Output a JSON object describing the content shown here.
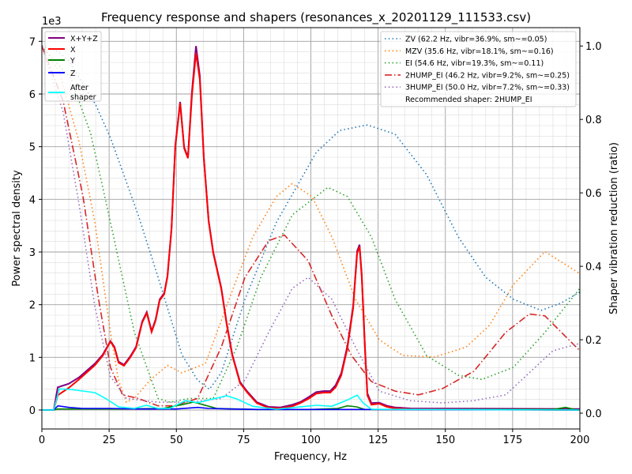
{
  "chart_data": {
    "type": "line",
    "title": "Frequency response and shapers (resonances_x_20201129_111533.csv)",
    "xlabel": "Frequency, Hz",
    "ylabel": "Power spectral density",
    "y2label": "Shaper vibration reduction (ratio)",
    "y_offset_label": "1e3",
    "xlim": [
      0,
      200
    ],
    "ylim": [
      -0.36,
      7.26
    ],
    "y2lim": [
      -0.043,
      1.05
    ],
    "xticks": [
      0,
      25,
      50,
      75,
      100,
      125,
      150,
      175,
      200
    ],
    "yticks": [
      0,
      1,
      2,
      3,
      4,
      5,
      6,
      7
    ],
    "y2ticks": [
      "0.0",
      "0.2",
      "0.4",
      "0.6",
      "0.8",
      "1.0"
    ],
    "grid": true,
    "legend_left": {
      "placement": "top-left",
      "entries": [
        {
          "name": "X+Y+Z",
          "color": "#800080"
        },
        {
          "name": "X",
          "color": "#ff0000"
        },
        {
          "name": "Y",
          "color": "#008000"
        },
        {
          "name": "Z",
          "color": "#0000ff"
        },
        {
          "name": "After\nshaper",
          "color": "#00ffff"
        }
      ]
    },
    "legend_right": {
      "placement": "top-right",
      "recommended": "Recommended shaper: 2HUMP_EI"
    },
    "psd_series": [
      {
        "name": "X+Y+Z",
        "color": "#800080",
        "x": [
          0,
          4.4,
          5.9,
          10,
          13.8,
          19.7,
          22.6,
          25.5,
          27,
          28.5,
          30.5,
          32.9,
          35,
          37.3,
          39,
          40.8,
          42.3,
          43.8,
          45.5,
          46.7,
          48.2,
          49.6,
          51.4,
          52.9,
          54.3,
          55.8,
          57.3,
          58.7,
          60.2,
          62,
          63.7,
          66.7,
          68.7,
          70.8,
          73.7,
          76.4,
          79.9,
          84.3,
          88.7,
          93.1,
          96,
          99,
          102,
          104.8,
          107.2,
          109.2,
          111.3,
          113.6,
          115.7,
          117.2,
          118.1,
          118.9,
          120.1,
          121,
          122.5,
          125.4,
          128.3,
          131.3,
          137,
          200
        ],
        "y": [
          0,
          0,
          0.43,
          0.5,
          0.62,
          0.88,
          1.05,
          1.31,
          1.2,
          0.92,
          0.86,
          1.02,
          1.2,
          1.68,
          1.86,
          1.5,
          1.72,
          2.1,
          2.22,
          2.55,
          3.45,
          5.02,
          5.85,
          4.99,
          4.8,
          6.05,
          6.91,
          6.35,
          4.8,
          3.6,
          3.0,
          2.32,
          1.65,
          1.05,
          0.53,
          0.35,
          0.15,
          0.06,
          0.05,
          0.1,
          0.15,
          0.24,
          0.34,
          0.36,
          0.36,
          0.47,
          0.7,
          1.22,
          1.97,
          3.02,
          3.14,
          2.57,
          1.22,
          0.32,
          0.13,
          0.14,
          0.08,
          0.05,
          0.03,
          0.02
        ]
      },
      {
        "name": "X",
        "color": "#ff0000",
        "x": [
          0,
          4.4,
          5.9,
          10,
          13.8,
          19.7,
          22.6,
          25.5,
          27,
          28.5,
          30.5,
          32.9,
          35,
          37.3,
          39,
          40.8,
          42.3,
          43.8,
          45.5,
          46.7,
          48.2,
          49.6,
          51.4,
          52.9,
          54.3,
          55.8,
          57.3,
          58.7,
          60.2,
          62,
          63.7,
          66.7,
          68.7,
          70.8,
          73.7,
          76.4,
          79.9,
          84.3,
          88.7,
          93.1,
          96,
          99,
          102,
          104.8,
          107.2,
          109.2,
          111.3,
          113.6,
          115.7,
          117.2,
          118.1,
          118.9,
          120.1,
          121,
          122.5,
          125.4,
          128.3,
          131.3,
          137,
          200
        ],
        "y": [
          0,
          0,
          0.28,
          0.42,
          0.58,
          0.85,
          1.03,
          1.3,
          1.18,
          0.9,
          0.84,
          1.0,
          1.18,
          1.66,
          1.84,
          1.48,
          1.7,
          2.08,
          2.2,
          2.53,
          3.43,
          5.0,
          5.83,
          4.97,
          4.78,
          5.98,
          6.78,
          6.28,
          4.78,
          3.58,
          2.98,
          2.3,
          1.63,
          1.03,
          0.51,
          0.33,
          0.13,
          0.04,
          0.03,
          0.07,
          0.13,
          0.21,
          0.31,
          0.33,
          0.33,
          0.43,
          0.66,
          1.18,
          1.93,
          2.98,
          3.1,
          2.53,
          1.18,
          0.28,
          0.1,
          0.12,
          0.06,
          0.03,
          0.015,
          0
        ]
      },
      {
        "name": "Y",
        "color": "#008000",
        "x": [
          0,
          4.4,
          6,
          15,
          30,
          45,
          52,
          56.4,
          60,
          65,
          80,
          100,
          110,
          113.6,
          117,
          120,
          150,
          190,
          194.7,
          198,
          200
        ],
        "y": [
          0,
          0,
          0.02,
          0.02,
          0.02,
          0.03,
          0.1,
          0.15,
          0.1,
          0.03,
          0.01,
          0.01,
          0.03,
          0.08,
          0.06,
          0.01,
          0.01,
          0.01,
          0.05,
          0.01,
          0
        ]
      },
      {
        "name": "Z",
        "color": "#0000ff",
        "x": [
          0,
          4.4,
          6,
          10,
          15,
          25,
          35,
          50,
          58,
          62,
          70,
          80,
          120,
          200
        ],
        "y": [
          0,
          0,
          0.08,
          0.05,
          0.03,
          0.03,
          0.02,
          0.02,
          0.05,
          0.03,
          0.02,
          0.01,
          0.01,
          0
        ]
      },
      {
        "name": "After shaper",
        "color": "#00ffff",
        "x": [
          0,
          4.4,
          6.5,
          10.9,
          19.7,
          24,
          28.5,
          34.4,
          38.8,
          43.2,
          47.6,
          53.5,
          57.9,
          63.7,
          68.7,
          72.5,
          78.4,
          87.2,
          102,
          107.8,
          113.6,
          117.2,
          119.5,
          122.5,
          200
        ],
        "y": [
          0,
          0,
          0.4,
          0.39,
          0.33,
          0.21,
          0.06,
          0.03,
          0.09,
          0.03,
          0.03,
          0.18,
          0.14,
          0.21,
          0.27,
          0.21,
          0.07,
          0.015,
          0.09,
          0.07,
          0.19,
          0.28,
          0.13,
          0.015,
          0
        ]
      }
    ],
    "shaper_series": [
      {
        "name": "ZV (62.2 Hz, vibr=36.9%, sm~=0.05)",
        "color": "#1f77b4",
        "dash": "dot",
        "x": [
          0,
          5,
          10,
          15,
          20,
          25.5,
          27,
          35.8,
          43.2,
          52,
          57.9,
          62.3,
          66.7,
          75.5,
          87.2,
          102,
          110.7,
          121,
          131.3,
          143,
          154.8,
          165,
          175.3,
          185.6,
          193,
          200
        ],
        "y": [
          1.0,
          0.99,
          0.96,
          0.9,
          0.84,
          0.75,
          0.72,
          0.54,
          0.37,
          0.16,
          0.09,
          0.065,
          0.11,
          0.31,
          0.52,
          0.71,
          0.77,
          0.785,
          0.76,
          0.65,
          0.48,
          0.37,
          0.31,
          0.28,
          0.3,
          0.33
        ]
      },
      {
        "name": "MZV (35.6 Hz, vibr=18.1%, sm~=0.16)",
        "color": "#ff7f0e",
        "dash": "dot",
        "x": [
          0,
          6.5,
          13.8,
          19.7,
          25.5,
          28.5,
          31.4,
          34.4,
          40.2,
          46.7,
          52,
          60.8,
          69.6,
          78.4,
          87.2,
          93,
          100.4,
          107.8,
          116.6,
          125.4,
          134.2,
          146,
          157.7,
          166.5,
          175.3,
          187,
          200
        ],
        "y": [
          1.0,
          0.93,
          0.74,
          0.52,
          0.22,
          0.09,
          0.03,
          0.04,
          0.09,
          0.13,
          0.11,
          0.135,
          0.31,
          0.48,
          0.59,
          0.625,
          0.59,
          0.48,
          0.31,
          0.2,
          0.157,
          0.153,
          0.18,
          0.24,
          0.35,
          0.44,
          0.38
        ]
      },
      {
        "name": "EI (54.6 Hz, vibr=19.3%, sm~=0.11)",
        "color": "#2ca02c",
        "dash": "dot",
        "x": [
          0,
          10.9,
          18.2,
          25.5,
          34.4,
          43.2,
          47.6,
          54.9,
          63.7,
          72.5,
          81.4,
          93.1,
          106.3,
          113.6,
          122.5,
          131.3,
          143,
          154.8,
          163.6,
          175.3,
          187,
          200
        ],
        "y": [
          1.0,
          0.91,
          0.76,
          0.52,
          0.22,
          0.04,
          0.03,
          0.04,
          0.04,
          0.18,
          0.37,
          0.54,
          0.615,
          0.59,
          0.48,
          0.31,
          0.157,
          0.103,
          0.092,
          0.125,
          0.22,
          0.34
        ]
      },
      {
        "name": "2HUMP_EI (46.2 Hz, vibr=9.2%, sm~=0.25)",
        "color": "#d62728",
        "dash": "dashdot",
        "x": [
          0,
          7.9,
          15.3,
          21.1,
          25.5,
          30,
          35.8,
          43.2,
          49,
          57.9,
          66.7,
          75.5,
          84.3,
          90.2,
          99,
          107.8,
          115.1,
          122.5,
          131.3,
          140,
          148.9,
          160.6,
          172.4,
          181.2,
          187,
          200
        ],
        "y": [
          1.0,
          0.85,
          0.59,
          0.31,
          0.125,
          0.05,
          0.04,
          0.02,
          0.02,
          0.04,
          0.18,
          0.37,
          0.47,
          0.485,
          0.415,
          0.265,
          0.157,
          0.086,
          0.06,
          0.05,
          0.067,
          0.114,
          0.22,
          0.27,
          0.265,
          0.17
        ]
      },
      {
        "name": "3HUMP_EI (50.0 Hz, vibr=7.2%, sm~=0.33)",
        "color": "#9467bd",
        "dash": "dot",
        "x": [
          0,
          7.9,
          13.8,
          19.7,
          25.5,
          31.4,
          43.2,
          54.9,
          66.7,
          75.5,
          84.3,
          93.1,
          99,
          107.8,
          116.6,
          125.4,
          137,
          148.9,
          160.6,
          172.4,
          181.2,
          190,
          200
        ],
        "y": [
          1.0,
          0.82,
          0.57,
          0.29,
          0.1,
          0.04,
          0.03,
          0.03,
          0.04,
          0.09,
          0.22,
          0.34,
          0.37,
          0.31,
          0.18,
          0.06,
          0.034,
          0.028,
          0.034,
          0.05,
          0.11,
          0.17,
          0.19
        ]
      }
    ]
  }
}
